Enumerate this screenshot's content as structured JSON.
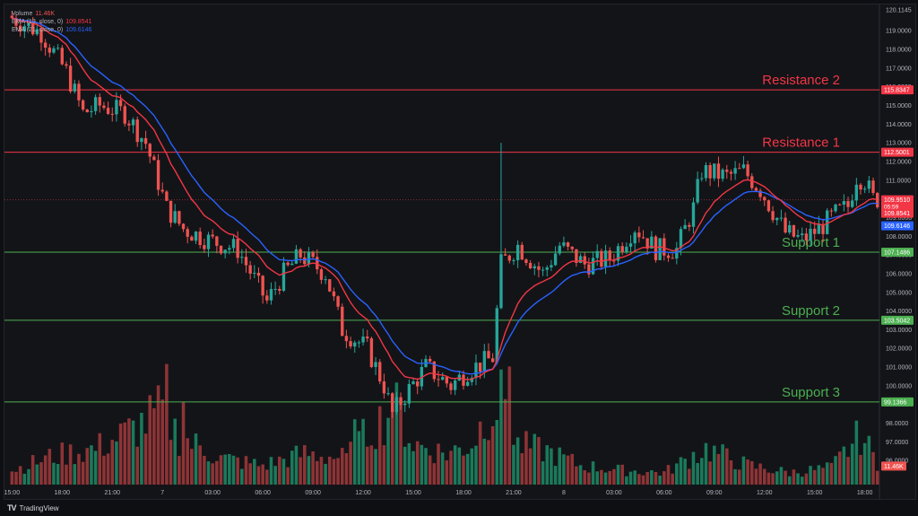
{
  "legend": {
    "volume": {
      "name": "Volume",
      "value": "11.46K"
    },
    "ema13": {
      "name": "EMA (13, close, 0)",
      "value": "109.8541"
    },
    "ema21": {
      "name": "EMA (21, close, 0)",
      "value": "109.6146"
    }
  },
  "footer": {
    "brand": "TradingView"
  },
  "colors": {
    "up": "#26a69a",
    "down": "#ef5350",
    "vol_up": "#1b7a5b",
    "vol_down": "#8e3436",
    "ema13": "#f23645",
    "ema21": "#2962ff",
    "resistance": "#f23645",
    "support": "#4caf50"
  },
  "chart_data": {
    "type": "candlestick",
    "ylim": [
      95.0,
      120.1145
    ],
    "price_ticks": [
      "120.1145",
      "119.0000",
      "118.0000",
      "117.0000",
      "116.0000",
      "115.0000",
      "114.0000",
      "113.0000",
      "112.0000",
      "111.0000",
      "110.0000",
      "109.0000",
      "108.0000",
      "107.0000",
      "106.0000",
      "105.0000",
      "104.0000",
      "103.0000",
      "102.0000",
      "101.0000",
      "100.0000",
      "99.0000",
      "98.0000",
      "97.0000",
      "96.0000"
    ],
    "time_ticks": [
      {
        "label": "15:00",
        "i": 0
      },
      {
        "label": "18:00",
        "i": 12
      },
      {
        "label": "21:00",
        "i": 24
      },
      {
        "label": "7",
        "i": 36
      },
      {
        "label": "03:00",
        "i": 48
      },
      {
        "label": "06:00",
        "i": 60
      },
      {
        "label": "09:00",
        "i": 72
      },
      {
        "label": "12:00",
        "i": 84
      },
      {
        "label": "15:00",
        "i": 96
      },
      {
        "label": "18:00",
        "i": 108
      },
      {
        "label": "21:00",
        "i": 120
      },
      {
        "label": "8",
        "i": 132
      },
      {
        "label": "03:00",
        "i": 144
      },
      {
        "label": "06:00",
        "i": 156
      },
      {
        "label": "09:00",
        "i": 168
      },
      {
        "label": "12:00",
        "i": 180
      },
      {
        "label": "15:00",
        "i": 192
      },
      {
        "label": "18:00",
        "i": 204
      }
    ],
    "levels": [
      {
        "name": "Resistance 2",
        "value": 115.8347,
        "value_label": "115.8347",
        "kind": "resistance"
      },
      {
        "name": "Resistance 1",
        "value": 112.5001,
        "value_label": "112.5001",
        "kind": "resistance"
      },
      {
        "name": "Support 1",
        "value": 107.1486,
        "value_label": "107.1486",
        "kind": "support"
      },
      {
        "name": "Support 2",
        "value": 103.5042,
        "value_label": "103.5042",
        "kind": "support"
      },
      {
        "name": "Support 3",
        "value": 99.1366,
        "value_label": "99.1366",
        "kind": "support"
      }
    ],
    "price_badges": [
      {
        "value": 109.951,
        "label": "109.9510",
        "sub": "05:59",
        "color": "#f23645"
      },
      {
        "value": 109.8541,
        "label": "109.8541",
        "color": "#f23645"
      },
      {
        "value": 109.6146,
        "label": "109.6146",
        "color": "#2962ff"
      }
    ],
    "volume_badge": "11.46K",
    "price_anchors": [
      [
        0,
        119.8
      ],
      [
        8,
        118.9
      ],
      [
        14,
        116.8
      ],
      [
        18,
        114.6
      ],
      [
        22,
        115.0
      ],
      [
        28,
        114.6
      ],
      [
        33,
        113.0
      ],
      [
        38,
        109.5
      ],
      [
        42,
        108.4
      ],
      [
        48,
        107.8
      ],
      [
        55,
        107.3
      ],
      [
        62,
        104.5
      ],
      [
        66,
        106.0
      ],
      [
        70,
        107.0
      ],
      [
        76,
        106.0
      ],
      [
        80,
        103.0
      ],
      [
        86,
        102.0
      ],
      [
        90,
        100.0
      ],
      [
        92,
        98.5
      ],
      [
        95,
        99.5
      ],
      [
        100,
        101.0
      ],
      [
        106,
        100.0
      ],
      [
        110,
        100.8
      ],
      [
        116,
        101.5
      ],
      [
        118,
        106.5
      ],
      [
        122,
        107.5
      ],
      [
        128,
        106.0
      ],
      [
        132,
        107.5
      ],
      [
        138,
        106.5
      ],
      [
        144,
        106.8
      ],
      [
        150,
        108.5
      ],
      [
        155,
        107.3
      ],
      [
        160,
        107.3
      ],
      [
        164,
        109.5
      ],
      [
        166,
        111.5
      ],
      [
        172,
        111.2
      ],
      [
        176,
        111.5
      ],
      [
        180,
        110.5
      ],
      [
        186,
        108.2
      ],
      [
        190,
        107.8
      ],
      [
        194,
        108.4
      ],
      [
        198,
        109.2
      ],
      [
        201,
        109.6
      ],
      [
        203,
        111.2
      ],
      [
        205,
        111.0
      ],
      [
        207,
        110.0
      ]
    ],
    "volume_anchors": [
      [
        0,
        0.12
      ],
      [
        10,
        0.24
      ],
      [
        20,
        0.3
      ],
      [
        30,
        0.48
      ],
      [
        36,
        0.62
      ],
      [
        40,
        0.4
      ],
      [
        50,
        0.22
      ],
      [
        60,
        0.16
      ],
      [
        70,
        0.26
      ],
      [
        80,
        0.22
      ],
      [
        86,
        0.48
      ],
      [
        92,
        0.62
      ],
      [
        96,
        0.34
      ],
      [
        104,
        0.26
      ],
      [
        110,
        0.34
      ],
      [
        114,
        0.62
      ],
      [
        118,
        0.72
      ],
      [
        120,
        0.34
      ],
      [
        128,
        0.28
      ],
      [
        136,
        0.16
      ],
      [
        146,
        0.12
      ],
      [
        156,
        0.1
      ],
      [
        166,
        0.3
      ],
      [
        176,
        0.16
      ],
      [
        186,
        0.1
      ],
      [
        196,
        0.14
      ],
      [
        203,
        0.42
      ],
      [
        207,
        0.18
      ]
    ],
    "volume_spikes": [
      [
        37,
        0.96
      ],
      [
        41,
        0.66
      ],
      [
        82,
        0.52
      ],
      [
        91,
        0.6
      ],
      [
        118,
        0.68
      ],
      [
        119,
        0.94
      ],
      [
        163,
        0.26
      ]
    ],
    "wick_spikes": [
      [
        117,
        113.0,
        0
      ]
    ]
  }
}
